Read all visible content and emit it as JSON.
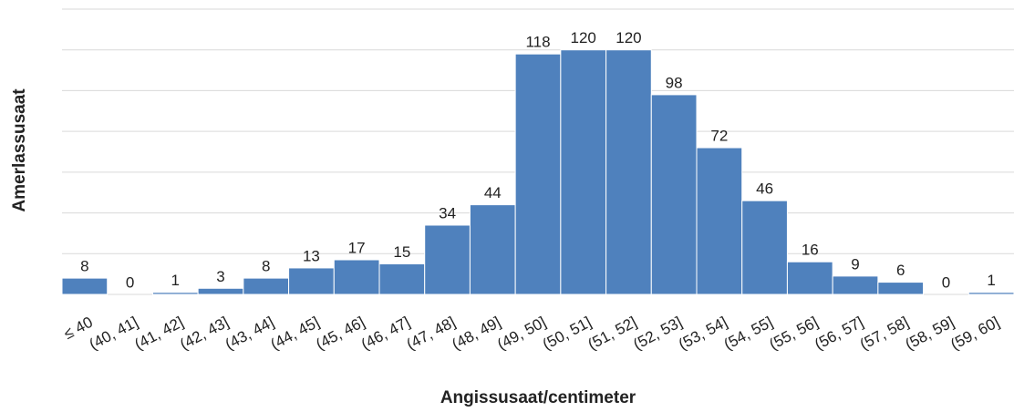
{
  "chart_data": {
    "type": "bar",
    "x_label": "Angissusaat/centimeter",
    "y_label": "Amerlassusaat",
    "categories": [
      "≤ 40",
      "(40, 41]",
      "(41, 42]",
      "(42, 43]",
      "(43, 44]",
      "(44, 45]",
      "(45, 46]",
      "(46, 47]",
      "(47, 48]",
      "(48, 49]",
      "(49, 50]",
      "(50, 51]",
      "(51, 52]",
      "(52, 53]",
      "(53, 54]",
      "(54, 55]",
      "(55, 56]",
      "(56, 57]",
      "(57, 58]",
      "(58, 59]",
      "(59, 60]"
    ],
    "values": [
      8,
      0,
      1,
      3,
      8,
      13,
      17,
      15,
      34,
      44,
      118,
      120,
      120,
      98,
      72,
      46,
      16,
      9,
      6,
      0,
      1
    ],
    "color": "#4f81bd",
    "ylim": [
      0,
      140
    ],
    "yticks": [
      0,
      20,
      40,
      60,
      80,
      100,
      120,
      140
    ],
    "grid": true
  }
}
